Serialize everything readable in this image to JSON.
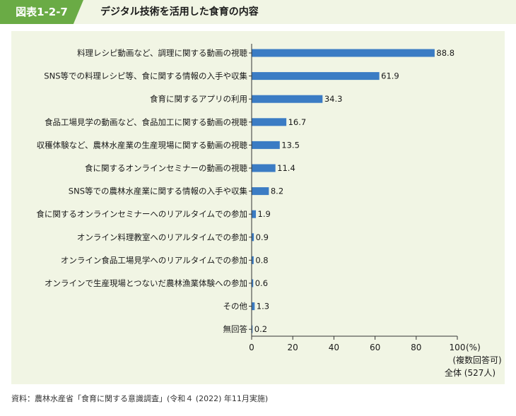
{
  "header": {
    "figure_label": "図表1-2-7",
    "title": "デジタル技術を活用した食育の内容"
  },
  "source": "資料：農林水産省「食育に関する意識調査」(令和４ (2022) 年11月実施)",
  "colors": {
    "bar": "#3b7cc4",
    "label_bg": "#6aab45",
    "panel_bg": "#f1f5e4"
  },
  "chart_data": {
    "type": "bar",
    "orientation": "horizontal",
    "categories": [
      "料理レシピ動画など、調理に関する動画の視聴",
      "SNS等での料理レシピ等、食に関する情報の入手や収集",
      "食育に関するアプリの利用",
      "食品工場見学の動画など、食品加工に関する動画の視聴",
      "収穫体験など、農林水産業の生産現場に関する動画の視聴",
      "食に関するオンラインセミナーの動画の視聴",
      "SNS等での農林水産業に関する情報の入手や収集",
      "食に関するオンラインセミナーへのリアルタイムでの参加",
      "オンライン料理教室へのリアルタイムでの参加",
      "オンライン食品工場見学へのリアルタイムでの参加",
      "オンラインで生産現場とつないだ農林漁業体験への参加",
      "その他",
      "無回答"
    ],
    "values": [
      88.8,
      61.9,
      34.3,
      16.7,
      13.5,
      11.4,
      8.2,
      1.9,
      0.9,
      0.8,
      0.6,
      1.3,
      0.2
    ],
    "value_labels": [
      "88.8",
      "61.9",
      "34.3",
      "16.7",
      "13.5",
      "11.4",
      "8.2",
      "1.9",
      "0.9",
      "0.8",
      "0.6",
      "1.3",
      "0.2"
    ],
    "xlim": [
      0,
      100
    ],
    "xticks": [
      0,
      20,
      40,
      60,
      80,
      100
    ],
    "xtick_labels": [
      "0",
      "20",
      "40",
      "60",
      "80",
      "100"
    ],
    "x_unit": "(%)",
    "axis_notes": [
      "(複数回答可)",
      "全体 (527人)"
    ],
    "grid": false
  }
}
